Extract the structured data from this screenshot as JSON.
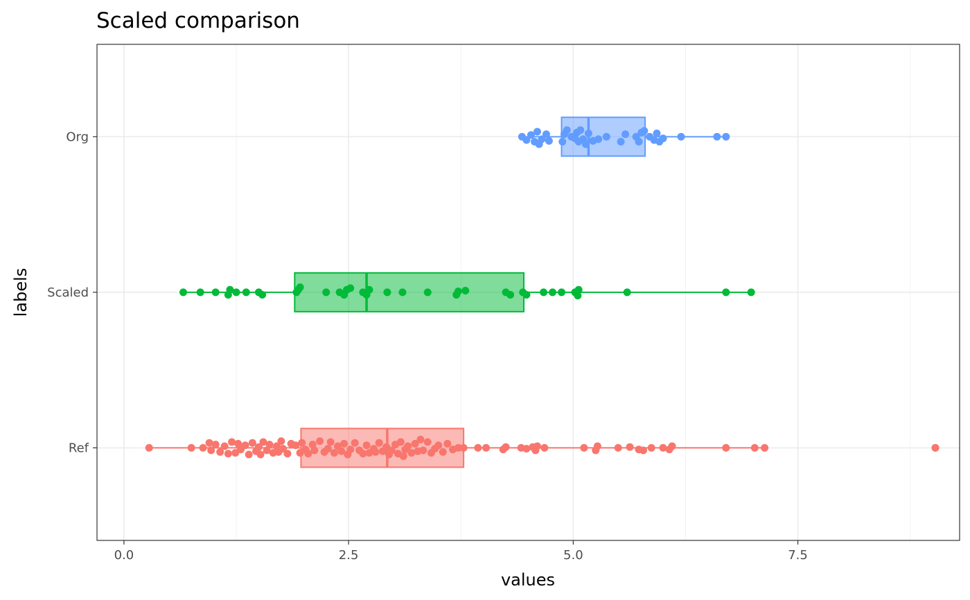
{
  "chart_data": {
    "type": "boxplot",
    "orientation": "horizontal",
    "title": "Scaled comparison",
    "xlabel": "values",
    "ylabel": "labels",
    "xlim": [
      -0.3,
      9.3
    ],
    "x_ticks": [
      0.0,
      2.5,
      5.0,
      7.5
    ],
    "x_tick_labels": [
      "0.0",
      "2.5",
      "5.0",
      "7.5"
    ],
    "grid": true,
    "legend": "none",
    "categories": [
      "Ref",
      "Scaled",
      "Org"
    ],
    "series": [
      {
        "category": "Ref",
        "color": "#F8766D",
        "box": {
          "min": 0.28,
          "q1": 1.97,
          "median": 2.93,
          "q3": 3.78,
          "max": 7.13
        },
        "outliers": [
          9.03
        ],
        "points": [
          0.28,
          0.75,
          0.88,
          0.95,
          0.97,
          1.02,
          1.07,
          1.12,
          1.16,
          1.2,
          1.24,
          1.27,
          1.3,
          1.35,
          1.39,
          1.43,
          1.47,
          1.5,
          1.52,
          1.55,
          1.59,
          1.62,
          1.66,
          1.7,
          1.72,
          1.75,
          1.77,
          1.82,
          1.86,
          1.91,
          1.96,
          1.98,
          2.02,
          2.05,
          2.1,
          2.12,
          2.18,
          2.23,
          2.27,
          2.3,
          2.34,
          2.38,
          2.42,
          2.45,
          2.49,
          2.52,
          2.57,
          2.62,
          2.66,
          2.7,
          2.73,
          2.78,
          2.8,
          2.84,
          2.88,
          2.92,
          2.95,
          2.98,
          3.02,
          3.05,
          3.08,
          3.11,
          3.13,
          3.16,
          3.2,
          3.24,
          3.27,
          3.3,
          3.33,
          3.38,
          3.42,
          3.46,
          3.5,
          3.55,
          3.6,
          3.66,
          3.72,
          3.78,
          3.94,
          4.03,
          4.22,
          4.25,
          4.42,
          4.48,
          4.55,
          4.58,
          4.6,
          4.68,
          5.12,
          5.25,
          5.27,
          5.5,
          5.63,
          5.73,
          5.78,
          5.87,
          6.0,
          6.07,
          6.1,
          6.7,
          7.02,
          7.13,
          9.03
        ],
        "jitter": [
          0,
          0,
          0,
          -0.6,
          0.3,
          -0.4,
          0.5,
          -0.2,
          0.7,
          -0.7,
          0.6,
          -0.5,
          0.2,
          -0.3,
          0.8,
          -0.6,
          0.4,
          -0.1,
          0.8,
          -0.7,
          0.3,
          -0.4,
          0.6,
          -0.2,
          0.5,
          -0.8,
          0.1,
          0.7,
          -0.5,
          -0.3,
          0.6,
          -0.6,
          0.2,
          0.7,
          -0.4,
          0.3,
          -0.8,
          0.5,
          0.1,
          -0.7,
          0.6,
          -0.2,
          0.4,
          -0.5,
          0.8,
          0.2,
          -0.6,
          0.3,
          0.7,
          -0.3,
          0.6,
          0.1,
          0.5,
          -0.6,
          0.4,
          -0.1,
          0.8,
          0.3,
          -0.4,
          0.7,
          -0.7,
          1.0,
          0.2,
          -0.2,
          0.6,
          -0.5,
          0.4,
          -1.0,
          0.3,
          -0.7,
          0.6,
          0.1,
          -0.3,
          0.5,
          -0.5,
          0.2,
          0,
          0,
          0,
          0,
          0.2,
          -0.1,
          0,
          0.1,
          -0.1,
          0.3,
          -0.2,
          0,
          0,
          0.3,
          -0.2,
          0,
          -0.1,
          0.2,
          0.3,
          0,
          0,
          0.2,
          -0.2,
          0,
          0,
          0,
          0
        ]
      },
      {
        "category": "Scaled",
        "color": "#00BA38",
        "box": {
          "min": 0.66,
          "q1": 1.9,
          "median": 2.7,
          "q3": 4.45,
          "max": 6.98
        },
        "outliers": [],
        "points": [
          0.66,
          0.85,
          1.02,
          1.16,
          1.18,
          1.25,
          1.36,
          1.5,
          1.54,
          1.92,
          1.94,
          1.96,
          2.25,
          2.4,
          2.45,
          2.48,
          2.52,
          2.66,
          2.7,
          2.73,
          2.93,
          3.1,
          3.38,
          3.7,
          3.72,
          3.8,
          4.25,
          4.3,
          4.44,
          4.48,
          4.67,
          4.77,
          4.87,
          5.02,
          5.05,
          5.06,
          5.6,
          6.7,
          6.98
        ],
        "jitter": [
          0,
          0,
          0,
          0.3,
          -0.3,
          0,
          0,
          0,
          0.3,
          0,
          -0.3,
          -0.6,
          0,
          0,
          0.3,
          -0.3,
          -0.5,
          0,
          0.3,
          -0.3,
          0,
          0,
          0,
          0.3,
          -0.1,
          -0.2,
          0,
          0.3,
          0,
          0.3,
          0,
          0,
          0,
          0,
          0.4,
          -0.3,
          0,
          0,
          0
        ]
      },
      {
        "category": "Org",
        "color": "#619CFF",
        "box": {
          "min": 4.43,
          "q1": 4.87,
          "median": 5.17,
          "q3": 5.8,
          "max": 6.7
        },
        "outliers": [],
        "points": [
          4.43,
          4.48,
          4.53,
          4.57,
          4.6,
          4.62,
          4.65,
          4.7,
          4.73,
          4.88,
          4.9,
          4.93,
          4.98,
          5.02,
          5.04,
          5.06,
          5.08,
          5.11,
          5.14,
          5.17,
          5.22,
          5.28,
          5.37,
          5.53,
          5.58,
          5.7,
          5.73,
          5.76,
          5.79,
          5.85,
          5.9,
          5.93,
          5.96,
          6.0,
          6.2,
          6.6,
          6.7
        ],
        "jitter": [
          0,
          0.4,
          -0.2,
          0.6,
          -0.6,
          0.9,
          0.3,
          -0.3,
          0.5,
          0.6,
          -0.3,
          -0.8,
          0,
          0.2,
          -0.5,
          0.6,
          -0.8,
          0.3,
          0.9,
          -0.4,
          0.5,
          0.3,
          0,
          0.6,
          -0.3,
          0,
          0.6,
          -0.5,
          -0.7,
          0,
          0.4,
          -0.4,
          0.6,
          0.2,
          0,
          0,
          0
        ]
      }
    ]
  }
}
